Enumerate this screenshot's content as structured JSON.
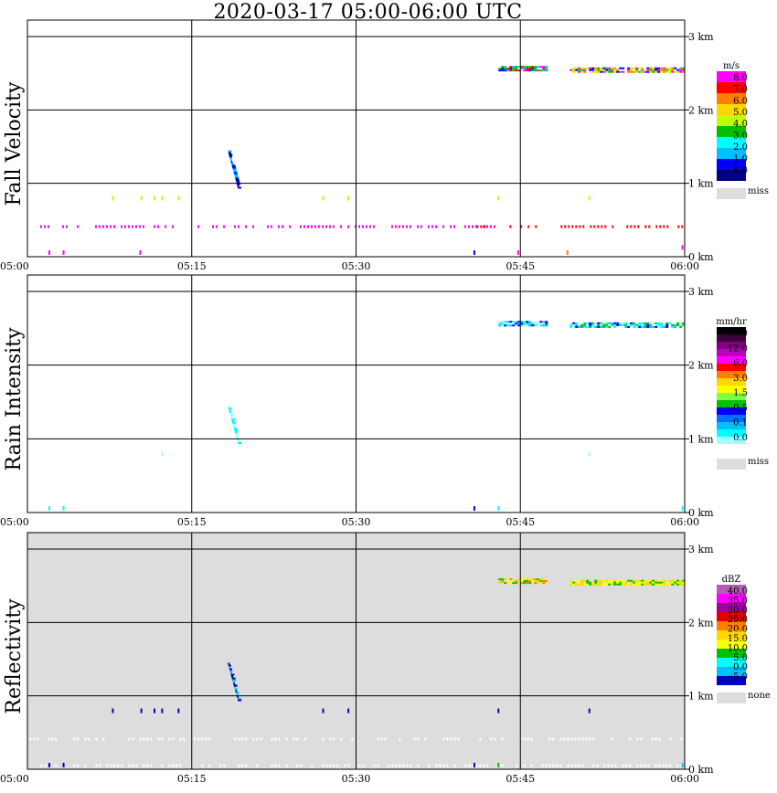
{
  "title": "2020-03-17   05:00-06:00 UTC",
  "time_ticks": [
    "05:00",
    "05:15",
    "05:30",
    "05:45",
    "06:00"
  ],
  "height_ticks": [
    "0 km",
    "1 km",
    "2 km",
    "3 km"
  ],
  "chart_data": [
    {
      "type": "heatmap",
      "name": "fall_velocity",
      "ylabel": "Fall Velocity",
      "xlim_min": [
        0,
        60
      ],
      "ylim_km": [
        0,
        3.0
      ],
      "background": "#ffffff",
      "legend": {
        "unit": "m/s",
        "colors": [
          "#ff00ff",
          "#ff0000",
          "#ff7f00",
          "#ffd700",
          "#bfff00",
          "#00c000",
          "#00ffff",
          "#00bfff",
          "#0000ff",
          "#000080"
        ],
        "labels": [
          "8.0",
          "7.0",
          "6.0",
          "5.0",
          "4.0",
          "3.0",
          "2.0",
          "1.0",
          "0.0"
        ],
        "missing_color": "#dddddd",
        "missing_label": "miss"
      },
      "features": [
        {
          "kind": "band",
          "t": [
            43.0,
            47.3
          ],
          "h": [
            2.54,
            2.6
          ],
          "colors": [
            "#ff00ff",
            "#00c000",
            "#ff0000",
            "#0000ff",
            "#00bfff"
          ]
        },
        {
          "kind": "band",
          "t": [
            49.5,
            60.0
          ],
          "h": [
            2.53,
            2.58
          ],
          "colors": [
            "#ff00ff",
            "#bfff00",
            "#ffd700",
            "#00c000",
            "#ff7f00",
            "#0000ff"
          ]
        },
        {
          "kind": "column",
          "t": [
            18.3,
            19.2
          ],
          "h": [
            0.95,
            1.45
          ],
          "colors": [
            "#0000ff",
            "#00bfff",
            "#000080"
          ]
        },
        {
          "kind": "dots",
          "t": [
            0.5,
            44.0
          ],
          "h": 0.41,
          "color": "#ff00ff"
        },
        {
          "kind": "dots",
          "t": [
            41.0,
            60.0
          ],
          "h": 0.41,
          "color": "#ff0000"
        },
        {
          "kind": "points",
          "t": [
            7.8,
            10.4,
            11.6,
            12.3,
            13.8,
            27.0,
            29.3,
            43.0,
            51.3
          ],
          "h": 0.79,
          "color": "#bfff00"
        },
        {
          "kind": "points",
          "t": [
            2.0,
            3.3,
            10.3,
            44.8
          ],
          "h": 0.05,
          "color": "#ff00ff"
        },
        {
          "kind": "points",
          "t": [
            40.8
          ],
          "h": 0.05,
          "color": "#0000ff"
        },
        {
          "kind": "points",
          "t": [
            49.3
          ],
          "h": 0.05,
          "color": "#ff7f00"
        },
        {
          "kind": "points",
          "t": [
            59.8
          ],
          "h": 0.12,
          "color": "#ff00ff"
        }
      ]
    },
    {
      "type": "heatmap",
      "name": "rain_intensity",
      "ylabel": "Rain Intensity",
      "xlim_min": [
        0,
        60
      ],
      "ylim_km": [
        0,
        3.0
      ],
      "background": "#ffffff",
      "legend": {
        "unit": "mm/hr",
        "colors": [
          "#000000",
          "#400040",
          "#800080",
          "#c000c0",
          "#ff00ff",
          "#ff0000",
          "#ff7f00",
          "#ffd700",
          "#ffff00",
          "#80ff40",
          "#00c000",
          "#0000ff",
          "#0070ff",
          "#00bfff",
          "#00ffff",
          "#a0ffff",
          "#ffffff"
        ],
        "labels": [
          "48.0",
          "12.0",
          "6.0",
          "3.0",
          "1.5",
          "0.5",
          "0.1",
          "0.0"
        ],
        "missing_color": "#dddddd",
        "missing_label": "miss"
      },
      "features": [
        {
          "kind": "band",
          "t": [
            43.0,
            47.3
          ],
          "h": [
            2.54,
            2.6
          ],
          "colors": [
            "#00ffff",
            "#0000ff",
            "#a0ffff",
            "#00bfff"
          ]
        },
        {
          "kind": "band",
          "t": [
            49.5,
            60.0
          ],
          "h": [
            2.53,
            2.58
          ],
          "colors": [
            "#00ffff",
            "#0000ff",
            "#a0ffff",
            "#00c000",
            "#00bfff"
          ]
        },
        {
          "kind": "column",
          "t": [
            18.3,
            19.2
          ],
          "h": [
            0.95,
            1.45
          ],
          "colors": [
            "#00ffff",
            "#a0ffff"
          ]
        },
        {
          "kind": "points",
          "t": [
            12.3,
            51.3
          ],
          "h": 0.79,
          "color": "#a0ffff"
        },
        {
          "kind": "points",
          "t": [
            2.0,
            3.3,
            43.0,
            59.8
          ],
          "h": 0.05,
          "color": "#00ffff"
        },
        {
          "kind": "points",
          "t": [
            40.8
          ],
          "h": 0.05,
          "color": "#0000ff"
        }
      ]
    },
    {
      "type": "heatmap",
      "name": "reflectivity",
      "ylabel": "Reflectivity",
      "xlim_min": [
        0,
        60
      ],
      "ylim_km": [
        0,
        3.0
      ],
      "background": "#dddddd",
      "legend": {
        "unit": "dBZ",
        "colors": [
          "#b060b0",
          "#ff00ff",
          "#a000a0",
          "#e00000",
          "#ff7f00",
          "#ffd700",
          "#ffff00",
          "#00c000",
          "#00ffff",
          "#00bfff",
          "#0000c0"
        ],
        "labels": [
          "40.0",
          "35.0",
          "30.0",
          "25.0",
          "20.0",
          "15.0",
          "10.0",
          "5.0",
          "0.0",
          "−5.0"
        ],
        "missing_color": "#dddddd",
        "missing_label": "none"
      },
      "features": [
        {
          "kind": "band",
          "t": [
            43.0,
            47.3
          ],
          "h": [
            2.54,
            2.6
          ],
          "colors": [
            "#ffd700",
            "#ff7f00",
            "#00c000",
            "#ffff00"
          ]
        },
        {
          "kind": "band",
          "t": [
            49.5,
            60.0
          ],
          "h": [
            2.53,
            2.58
          ],
          "colors": [
            "#00c000",
            "#ffff00",
            "#ffd700"
          ]
        },
        {
          "kind": "column",
          "t": [
            18.3,
            19.2
          ],
          "h": [
            0.95,
            1.45
          ],
          "colors": [
            "#0000c0",
            "#00bfff",
            "#000080"
          ]
        },
        {
          "kind": "points",
          "t": [
            7.8,
            10.4,
            11.6,
            12.3,
            13.8,
            27.0,
            29.3,
            43.0,
            51.3
          ],
          "h": 0.79,
          "color": "#0000c0"
        },
        {
          "kind": "dots",
          "t": [
            0.2,
            60.0
          ],
          "h": 0.41,
          "color": "#ffffff"
        },
        {
          "kind": "dots",
          "t": [
            0.2,
            60.0
          ],
          "h": 0.05,
          "color": "#ffffff"
        },
        {
          "kind": "points",
          "t": [
            2.0,
            3.3,
            40.8
          ],
          "h": 0.05,
          "color": "#0000c0"
        },
        {
          "kind": "points",
          "t": [
            43.0
          ],
          "h": 0.05,
          "color": "#00c000"
        },
        {
          "kind": "points",
          "t": [
            59.8
          ],
          "h": 0.05,
          "color": "#00bfff"
        }
      ]
    }
  ]
}
